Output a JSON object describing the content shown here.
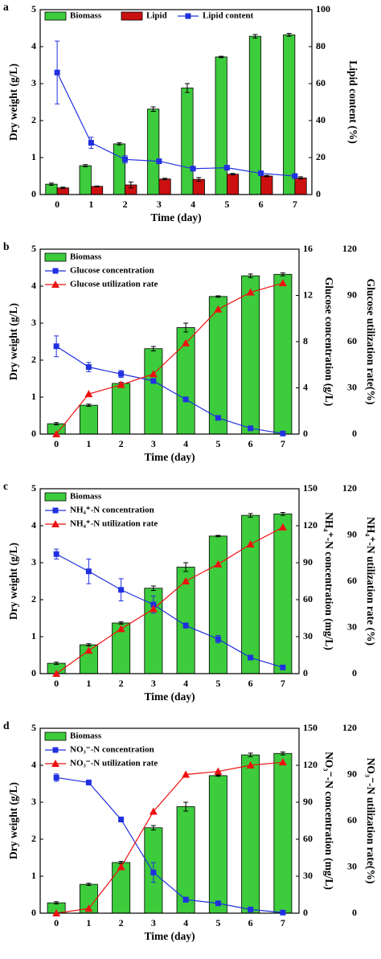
{
  "chart_data": [
    {
      "type": "bar",
      "panel_label": "a",
      "x_label": "Time (day)",
      "y_label": "Dry weight (g/L)",
      "y2_label": "Lipid content (%)",
      "categories": [
        "0",
        "1",
        "2",
        "3",
        "4",
        "5",
        "6",
        "7"
      ],
      "ylim": [
        0,
        5
      ],
      "yticks": [
        0,
        1,
        2,
        3,
        4,
        5
      ],
      "y2lim": [
        0,
        100
      ],
      "y2ticks": [
        0,
        20,
        40,
        60,
        80,
        100
      ],
      "legend": "top",
      "series": [
        {
          "name": "Biomass",
          "type": "bar",
          "color": "#3ccc3c",
          "axis": "y",
          "values": [
            0.28,
            0.78,
            1.37,
            2.31,
            2.88,
            3.72,
            4.28,
            4.32
          ],
          "errors": [
            0.03,
            0.03,
            0.03,
            0.06,
            0.12,
            0.02,
            0.05,
            0.04
          ]
        },
        {
          "name": "Lipid",
          "type": "bar",
          "color": "#cc1010",
          "axis": "y",
          "values": [
            0.18,
            0.22,
            0.26,
            0.42,
            0.41,
            0.55,
            0.5,
            0.45
          ],
          "errors": [
            0.02,
            0.01,
            0.08,
            0.02,
            0.05,
            0.02,
            0.02,
            0.03
          ]
        },
        {
          "name": "Lipid content",
          "type": "line",
          "marker": "square",
          "color": "#2030e0",
          "axis": "y2",
          "values": [
            66,
            28,
            19,
            18,
            14,
            14.5,
            11.5,
            10
          ],
          "errors": [
            17,
            3,
            2,
            1,
            1,
            1,
            1,
            1
          ]
        }
      ]
    },
    {
      "type": "bar",
      "panel_label": "b",
      "x_label": "Time (day)",
      "y_label": "Dry weight (g/L)",
      "y2_label": "Glucose concentration (g/L)",
      "y3_label": "Glucose utilization rate(%)",
      "categories": [
        "0",
        "1",
        "2",
        "3",
        "4",
        "5",
        "6",
        "7"
      ],
      "ylim": [
        0,
        5
      ],
      "yticks": [
        0,
        1,
        2,
        3,
        4,
        5
      ],
      "y2lim": [
        0,
        16
      ],
      "y2ticks": [
        0,
        4,
        8,
        12,
        16
      ],
      "y3lim": [
        0,
        120
      ],
      "y3ticks": [
        0,
        30,
        60,
        90,
        120
      ],
      "legend": "upper left",
      "series": [
        {
          "name": "Biomass",
          "type": "bar",
          "color": "#3ccc3c",
          "axis": "y",
          "values": [
            0.28,
            0.78,
            1.37,
            2.31,
            2.88,
            3.72,
            4.28,
            4.32
          ],
          "errors": [
            0.03,
            0.03,
            0.03,
            0.06,
            0.12,
            0.02,
            0.05,
            0.04
          ]
        },
        {
          "name": "Glucose concentration",
          "type": "line",
          "marker": "square",
          "color": "#2030e0",
          "axis": "y2",
          "values": [
            7.6,
            5.8,
            5.2,
            4.6,
            3.0,
            1.4,
            0.5,
            0.05
          ],
          "errors": [
            0.9,
            0.4,
            0.3,
            0.2,
            0.1,
            0.1,
            0.1,
            0.05
          ]
        },
        {
          "name": "Glucose utilization rate",
          "type": "line",
          "marker": "triangle",
          "color": "#ee1111",
          "axis": "y3",
          "values": [
            0,
            26,
            32,
            39,
            59,
            81,
            92,
            98
          ]
        }
      ]
    },
    {
      "type": "bar",
      "panel_label": "c",
      "x_label": "Time (day)",
      "y_label": "Dry weight (g/L)",
      "y2_label": "NH₄⁺-N concentration (mg/L)",
      "y3_label": "NH₄⁺-N utilization rate (%)",
      "categories": [
        "0",
        "1",
        "2",
        "3",
        "4",
        "5",
        "6",
        "7"
      ],
      "ylim": [
        0,
        5
      ],
      "yticks": [
        0,
        1,
        2,
        3,
        4,
        5
      ],
      "y2lim": [
        0,
        150
      ],
      "y2ticks": [
        0,
        30,
        60,
        90,
        120,
        150
      ],
      "y3lim": [
        0,
        120
      ],
      "y3ticks": [
        0,
        30,
        60,
        90,
        120
      ],
      "legend": "upper left",
      "series": [
        {
          "name": "Biomass",
          "type": "bar",
          "color": "#3ccc3c",
          "axis": "y",
          "values": [
            0.28,
            0.78,
            1.37,
            2.31,
            2.88,
            3.72,
            4.28,
            4.32
          ],
          "errors": [
            0.03,
            0.03,
            0.03,
            0.06,
            0.12,
            0.02,
            0.05,
            0.04
          ]
        },
        {
          "name": "NH₄⁺-N concentration",
          "type": "line",
          "marker": "square",
          "color": "#2030e0",
          "axis": "y2",
          "values": [
            97,
            83,
            68,
            56,
            39,
            28,
            13,
            5
          ],
          "errors": [
            4,
            10,
            9,
            7,
            2,
            3,
            1,
            1
          ]
        },
        {
          "name": "NH₄⁺-N utilization rate",
          "type": "line",
          "marker": "triangle",
          "color": "#ee1111",
          "axis": "y3",
          "values": [
            0,
            15,
            29,
            42,
            60,
            71,
            84,
            95
          ]
        }
      ]
    },
    {
      "type": "bar",
      "panel_label": "d",
      "x_label": "Time (day)",
      "y_label": "Dry weight (g/L)",
      "y2_label": "NO₃⁻-N concentration (mg/L)",
      "y3_label": "NO₃⁻-N utilization rate(%)",
      "categories": [
        "0",
        "1",
        "2",
        "3",
        "4",
        "5",
        "6",
        "7"
      ],
      "ylim": [
        0,
        5
      ],
      "yticks": [
        0,
        1,
        2,
        3,
        4,
        5
      ],
      "y2lim": [
        0,
        150
      ],
      "y2ticks": [
        0,
        30,
        60,
        90,
        120,
        150
      ],
      "y3lim": [
        0,
        120
      ],
      "y3ticks": [
        0,
        30,
        60,
        90,
        120
      ],
      "legend": "upper left",
      "series": [
        {
          "name": "Biomass",
          "type": "bar",
          "color": "#3ccc3c",
          "axis": "y",
          "values": [
            0.28,
            0.78,
            1.37,
            2.31,
            2.88,
            3.72,
            4.28,
            4.32
          ],
          "errors": [
            0.03,
            0.03,
            0.03,
            0.06,
            0.12,
            0.02,
            0.05,
            0.04
          ]
        },
        {
          "name": "NO₃⁻-N concentration",
          "type": "line",
          "marker": "square",
          "color": "#2030e0",
          "axis": "y2",
          "values": [
            110,
            106,
            76,
            33,
            11,
            8,
            3,
            0.5
          ],
          "errors": [
            3,
            2,
            2,
            8,
            2,
            1,
            1,
            0.5
          ]
        },
        {
          "name": "NO₃⁻-N utilization rate",
          "type": "line",
          "marker": "triangle",
          "color": "#ee1111",
          "axis": "y3",
          "values": [
            0,
            3,
            30,
            66,
            90,
            92,
            96,
            98
          ]
        }
      ]
    }
  ]
}
